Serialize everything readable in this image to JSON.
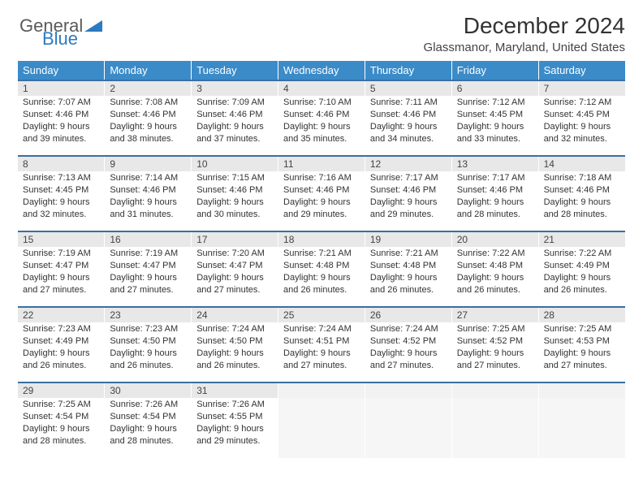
{
  "logo": {
    "part1": "General",
    "part2": "Blue"
  },
  "title": "December 2024",
  "location": "Glassmanor, Maryland, United States",
  "colors": {
    "header_bg": "#3b8bc8",
    "header_fg": "#ffffff",
    "daynum_bg": "#e8e8e8",
    "rule": "#3b6fa0",
    "logo_gray": "#5a5a5a",
    "logo_blue": "#2b7bbf"
  },
  "weekdays": [
    "Sunday",
    "Monday",
    "Tuesday",
    "Wednesday",
    "Thursday",
    "Friday",
    "Saturday"
  ],
  "weeks": [
    [
      {
        "n": "1",
        "sr": "7:07 AM",
        "ss": "4:46 PM",
        "dl": "9 hours and 39 minutes."
      },
      {
        "n": "2",
        "sr": "7:08 AM",
        "ss": "4:46 PM",
        "dl": "9 hours and 38 minutes."
      },
      {
        "n": "3",
        "sr": "7:09 AM",
        "ss": "4:46 PM",
        "dl": "9 hours and 37 minutes."
      },
      {
        "n": "4",
        "sr": "7:10 AM",
        "ss": "4:46 PM",
        "dl": "9 hours and 35 minutes."
      },
      {
        "n": "5",
        "sr": "7:11 AM",
        "ss": "4:46 PM",
        "dl": "9 hours and 34 minutes."
      },
      {
        "n": "6",
        "sr": "7:12 AM",
        "ss": "4:45 PM",
        "dl": "9 hours and 33 minutes."
      },
      {
        "n": "7",
        "sr": "7:12 AM",
        "ss": "4:45 PM",
        "dl": "9 hours and 32 minutes."
      }
    ],
    [
      {
        "n": "8",
        "sr": "7:13 AM",
        "ss": "4:45 PM",
        "dl": "9 hours and 32 minutes."
      },
      {
        "n": "9",
        "sr": "7:14 AM",
        "ss": "4:46 PM",
        "dl": "9 hours and 31 minutes."
      },
      {
        "n": "10",
        "sr": "7:15 AM",
        "ss": "4:46 PM",
        "dl": "9 hours and 30 minutes."
      },
      {
        "n": "11",
        "sr": "7:16 AM",
        "ss": "4:46 PM",
        "dl": "9 hours and 29 minutes."
      },
      {
        "n": "12",
        "sr": "7:17 AM",
        "ss": "4:46 PM",
        "dl": "9 hours and 29 minutes."
      },
      {
        "n": "13",
        "sr": "7:17 AM",
        "ss": "4:46 PM",
        "dl": "9 hours and 28 minutes."
      },
      {
        "n": "14",
        "sr": "7:18 AM",
        "ss": "4:46 PM",
        "dl": "9 hours and 28 minutes."
      }
    ],
    [
      {
        "n": "15",
        "sr": "7:19 AM",
        "ss": "4:47 PM",
        "dl": "9 hours and 27 minutes."
      },
      {
        "n": "16",
        "sr": "7:19 AM",
        "ss": "4:47 PM",
        "dl": "9 hours and 27 minutes."
      },
      {
        "n": "17",
        "sr": "7:20 AM",
        "ss": "4:47 PM",
        "dl": "9 hours and 27 minutes."
      },
      {
        "n": "18",
        "sr": "7:21 AM",
        "ss": "4:48 PM",
        "dl": "9 hours and 26 minutes."
      },
      {
        "n": "19",
        "sr": "7:21 AM",
        "ss": "4:48 PM",
        "dl": "9 hours and 26 minutes."
      },
      {
        "n": "20",
        "sr": "7:22 AM",
        "ss": "4:48 PM",
        "dl": "9 hours and 26 minutes."
      },
      {
        "n": "21",
        "sr": "7:22 AM",
        "ss": "4:49 PM",
        "dl": "9 hours and 26 minutes."
      }
    ],
    [
      {
        "n": "22",
        "sr": "7:23 AM",
        "ss": "4:49 PM",
        "dl": "9 hours and 26 minutes."
      },
      {
        "n": "23",
        "sr": "7:23 AM",
        "ss": "4:50 PM",
        "dl": "9 hours and 26 minutes."
      },
      {
        "n": "24",
        "sr": "7:24 AM",
        "ss": "4:50 PM",
        "dl": "9 hours and 26 minutes."
      },
      {
        "n": "25",
        "sr": "7:24 AM",
        "ss": "4:51 PM",
        "dl": "9 hours and 27 minutes."
      },
      {
        "n": "26",
        "sr": "7:24 AM",
        "ss": "4:52 PM",
        "dl": "9 hours and 27 minutes."
      },
      {
        "n": "27",
        "sr": "7:25 AM",
        "ss": "4:52 PM",
        "dl": "9 hours and 27 minutes."
      },
      {
        "n": "28",
        "sr": "7:25 AM",
        "ss": "4:53 PM",
        "dl": "9 hours and 27 minutes."
      }
    ],
    [
      {
        "n": "29",
        "sr": "7:25 AM",
        "ss": "4:54 PM",
        "dl": "9 hours and 28 minutes."
      },
      {
        "n": "30",
        "sr": "7:26 AM",
        "ss": "4:54 PM",
        "dl": "9 hours and 28 minutes."
      },
      {
        "n": "31",
        "sr": "7:26 AM",
        "ss": "4:55 PM",
        "dl": "9 hours and 29 minutes."
      },
      null,
      null,
      null,
      null
    ]
  ],
  "labels": {
    "sunrise": "Sunrise:",
    "sunset": "Sunset:",
    "daylight": "Daylight:"
  }
}
